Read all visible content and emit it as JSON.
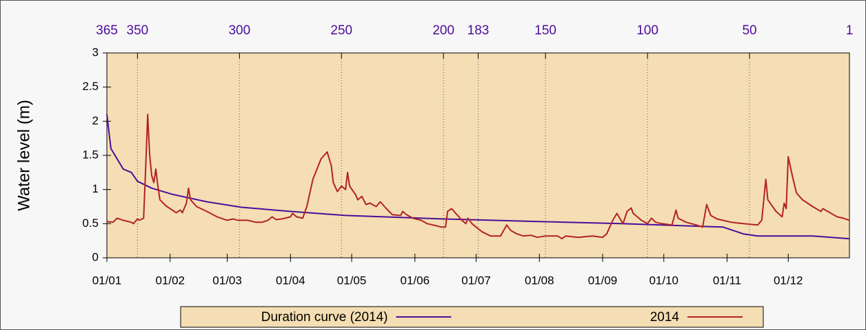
{
  "chart_data": {
    "type": "line",
    "ylabel": "Water level (m)",
    "xlim": [
      0,
      364
    ],
    "xticks": [
      {
        "value": 0,
        "label": "01/01"
      },
      {
        "value": 31,
        "label": "01/02"
      },
      {
        "value": 59,
        "label": "01/03"
      },
      {
        "value": 90,
        "label": "01/04"
      },
      {
        "value": 120,
        "label": "01/05"
      },
      {
        "value": 151,
        "label": "01/06"
      },
      {
        "value": 181,
        "label": "01/07"
      },
      {
        "value": 212,
        "label": "01/08"
      },
      {
        "value": 243,
        "label": "01/09"
      },
      {
        "value": 273,
        "label": "01/10"
      },
      {
        "value": 304,
        "label": "01/11"
      },
      {
        "value": 334,
        "label": "01/12"
      }
    ],
    "x2lim": [
      365,
      1
    ],
    "x2ticks": [
      365,
      350,
      300,
      250,
      200,
      183,
      150,
      100,
      50,
      1
    ],
    "x2color": "#4b0c9c",
    "ylim": [
      0,
      3
    ],
    "yticks": [
      0,
      0.5,
      1,
      1.5,
      2,
      2.5,
      3
    ],
    "grid": true,
    "legend": "bottom",
    "series": [
      {
        "name": "Duration curve (2014)",
        "color": "#4b0c9c",
        "x": [
          0,
          2,
          5,
          8,
          12,
          15,
          22,
          32,
          49,
          66,
          90,
          117,
          164,
          201,
          252,
          302,
          312,
          319,
          346,
          364
        ],
        "values": [
          2.1,
          1.6,
          1.45,
          1.3,
          1.25,
          1.12,
          1.02,
          0.93,
          0.82,
          0.74,
          0.68,
          0.62,
          0.57,
          0.54,
          0.5,
          0.45,
          0.35,
          0.32,
          0.32,
          0.28
        ]
      },
      {
        "name": "2014",
        "color": "#b22222",
        "x": [
          0,
          3,
          5,
          8,
          12,
          13,
          15,
          16,
          18,
          19,
          20,
          21,
          22,
          23,
          24,
          25,
          26,
          29,
          32,
          34,
          36,
          37,
          39,
          40,
          41,
          44,
          49,
          54,
          59,
          62,
          64,
          69,
          73,
          76,
          79,
          81,
          83,
          86,
          90,
          91,
          93,
          96,
          98,
          101,
          105,
          108,
          110,
          111,
          113,
          115,
          117,
          118,
          119,
          122,
          123,
          125,
          127,
          129,
          132,
          134,
          137,
          140,
          144,
          145,
          147,
          150,
          154,
          157,
          160,
          164,
          166,
          167,
          169,
          171,
          172,
          174,
          176,
          177,
          179,
          181,
          184,
          188,
          193,
          196,
          198,
          201,
          204,
          208,
          211,
          215,
          221,
          223,
          225,
          231,
          238,
          243,
          245,
          248,
          250,
          252,
          253,
          255,
          257,
          258,
          262,
          265,
          267,
          269,
          272,
          277,
          279,
          280,
          284,
          289,
          292,
          294,
          296,
          299,
          306,
          312,
          319,
          321,
          323,
          324,
          328,
          331,
          332,
          333,
          334,
          336,
          338,
          341,
          346,
          350,
          351,
          355,
          358,
          361,
          364
        ],
        "values": [
          0.53,
          0.52,
          0.58,
          0.55,
          0.52,
          0.5,
          0.57,
          0.55,
          0.58,
          1.3,
          2.1,
          1.5,
          1.2,
          1.1,
          1.3,
          1.05,
          0.85,
          0.76,
          0.7,
          0.66,
          0.7,
          0.66,
          0.8,
          1.02,
          0.85,
          0.75,
          0.68,
          0.6,
          0.55,
          0.57,
          0.55,
          0.55,
          0.52,
          0.52,
          0.55,
          0.6,
          0.56,
          0.57,
          0.6,
          0.65,
          0.6,
          0.58,
          0.75,
          1.15,
          1.45,
          1.55,
          1.35,
          1.1,
          0.97,
          1.05,
          1.0,
          1.25,
          1.05,
          0.92,
          0.85,
          0.9,
          0.78,
          0.8,
          0.75,
          0.82,
          0.72,
          0.63,
          0.62,
          0.68,
          0.63,
          0.58,
          0.55,
          0.5,
          0.48,
          0.45,
          0.45,
          0.68,
          0.72,
          0.65,
          0.62,
          0.55,
          0.5,
          0.58,
          0.5,
          0.45,
          0.38,
          0.32,
          0.32,
          0.48,
          0.4,
          0.35,
          0.32,
          0.33,
          0.3,
          0.32,
          0.32,
          0.28,
          0.32,
          0.3,
          0.32,
          0.3,
          0.35,
          0.55,
          0.65,
          0.55,
          0.5,
          0.68,
          0.73,
          0.65,
          0.55,
          0.5,
          0.58,
          0.52,
          0.5,
          0.48,
          0.7,
          0.58,
          0.52,
          0.48,
          0.45,
          0.78,
          0.62,
          0.57,
          0.52,
          0.5,
          0.48,
          0.55,
          1.15,
          0.85,
          0.68,
          0.6,
          0.8,
          0.72,
          1.48,
          1.2,
          0.95,
          0.85,
          0.75,
          0.68,
          0.72,
          0.65,
          0.6,
          0.58,
          0.55
        ]
      }
    ]
  }
}
